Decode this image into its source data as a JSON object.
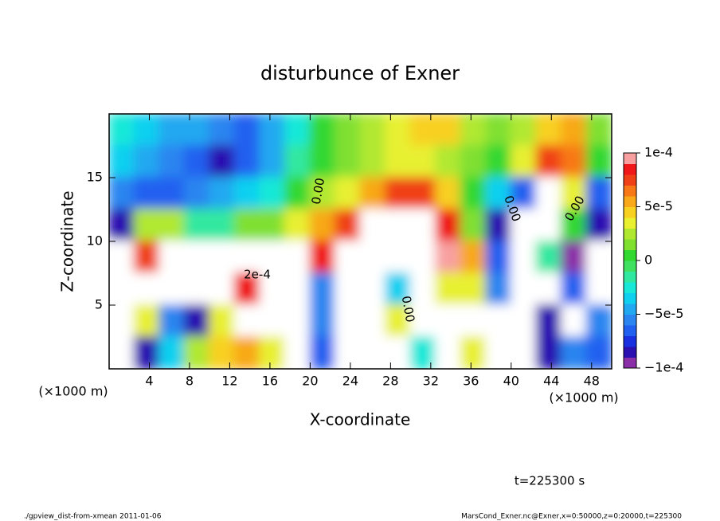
{
  "chart_data": {
    "type": "heatmap",
    "title": "disturbunce of Exner",
    "xlabel": "X-coordinate",
    "ylabel": "Z-coordinate",
    "x_unit": "(×1000 m)",
    "time_label": "t=225300 s",
    "footer_left": "./gpview_dist-from-xmean  2011-01-06",
    "footer_right": "MarsCond_Exner.nc@Exner,x=0:50000,z=0:20000,t=225300",
    "annotations": [
      "0.00",
      "0.00",
      "0.00",
      "0.00",
      "2e-4"
    ],
    "xlim": [
      0,
      50
    ],
    "ylim": [
      0,
      20
    ],
    "xticks": [
      4,
      8,
      12,
      16,
      20,
      24,
      28,
      32,
      36,
      40,
      44,
      48
    ],
    "yticks": [
      5,
      10,
      15
    ],
    "x": [
      1.25,
      3.75,
      6.25,
      8.75,
      11.25,
      13.75,
      16.25,
      18.75,
      21.25,
      23.75,
      26.25,
      28.75,
      31.25,
      33.75,
      36.25,
      38.75,
      41.25,
      43.75,
      46.25,
      48.75
    ],
    "y": [
      18.75,
      16.25,
      13.75,
      11.25,
      8.75,
      6.25,
      3.75,
      1.25
    ],
    "values": [
      [
        -3e-05,
        -4e-05,
        -5e-05,
        -5e-05,
        -6e-05,
        -7e-05,
        -5e-05,
        -3e-05,
        0,
        1e-05,
        2e-05,
        3e-05,
        4e-05,
        4e-05,
        2e-05,
        1e-05,
        2e-05,
        4e-05,
        5e-05,
        1e-05
      ],
      [
        -4e-05,
        -5e-05,
        -6e-05,
        -7e-05,
        -8e-05,
        -7e-05,
        -5e-05,
        -2e-05,
        0,
        1e-05,
        2e-05,
        3e-05,
        3e-05,
        2e-05,
        1e-05,
        0,
        3e-05,
        7e-05,
        6e-05,
        0
      ],
      [
        -6e-05,
        -7e-05,
        -7e-05,
        -6e-05,
        -5e-05,
        -4e-05,
        -3e-05,
        0,
        2e-05,
        3e-05,
        5e-05,
        7e-05,
        7e-05,
        4e-05,
        0,
        -4e-05,
        -7e-05,
        0.00012,
        3e-05,
        -7e-05
      ],
      [
        -8e-05,
        2e-05,
        2e-05,
        -2e-05,
        -2e-05,
        1e-05,
        1e-05,
        3e-05,
        5e-05,
        7e-05,
        0.00012,
        0.00012,
        0.00012,
        8e-05,
        1e-05,
        -8e-05,
        0.00012,
        0.00012,
        0,
        -8e-05
      ],
      [
        0.00012,
        7e-05,
        0.00012,
        0.00012,
        0.00012,
        0.00012,
        0.00012,
        0.00012,
        8e-05,
        0.00012,
        0.00012,
        0.00012,
        0.00012,
        9e-05,
        5e-05,
        -7e-05,
        0.00012,
        -2e-05,
        -9e-05,
        0.00012
      ],
      [
        0.00012,
        0.00012,
        0.00012,
        0.00012,
        0.00012,
        8e-05,
        0.00012,
        0.00012,
        -6e-05,
        0.00012,
        0.00012,
        -4e-05,
        0.00012,
        3e-05,
        3e-05,
        -6e-05,
        0.00012,
        0.00012,
        -7e-05,
        0.00012
      ],
      [
        0.00012,
        3e-05,
        -6e-05,
        -8e-05,
        3e-05,
        0.00012,
        0.00012,
        0.00012,
        -6e-05,
        0.00012,
        0.00012,
        3e-05,
        0.00012,
        0.00012,
        0.00012,
        0.00012,
        0.00012,
        -8e-05,
        0.00012,
        -6e-05
      ],
      [
        0.00012,
        -8e-05,
        -4e-05,
        2e-05,
        4e-05,
        5e-05,
        3e-05,
        0.00012,
        -7e-05,
        0.00012,
        0.00012,
        0.00012,
        -3e-05,
        0.00012,
        3e-05,
        0.00012,
        0.00012,
        -8e-05,
        -6e-05,
        -7e-05
      ]
    ],
    "clim": [
      -0.0001,
      0.0001
    ],
    "colors": [
      "#8b2fa8",
      "#2a10b0",
      "#1830e0",
      "#2060f0",
      "#2a85f0",
      "#20a8f0",
      "#10d0f0",
      "#18e8d8",
      "#30e8a0",
      "#40e060",
      "#30d830",
      "#80e030",
      "#b0e830",
      "#e8f030",
      "#f8d020",
      "#f8a818",
      "#f87818",
      "#f04018",
      "#f01818",
      "#f8a0a0"
    ],
    "over_color": "#ffffff",
    "under_color": "#8b2fa8",
    "cticks": [
      {
        "value": -0.0001,
        "label": "−1e-4"
      },
      {
        "value": -5e-05,
        "label": "−5e-5"
      },
      0,
      {
        "value": 5e-05,
        "label": "5e-5"
      },
      {
        "value": 0.0001,
        "label": "1e-4"
      }
    ]
  }
}
